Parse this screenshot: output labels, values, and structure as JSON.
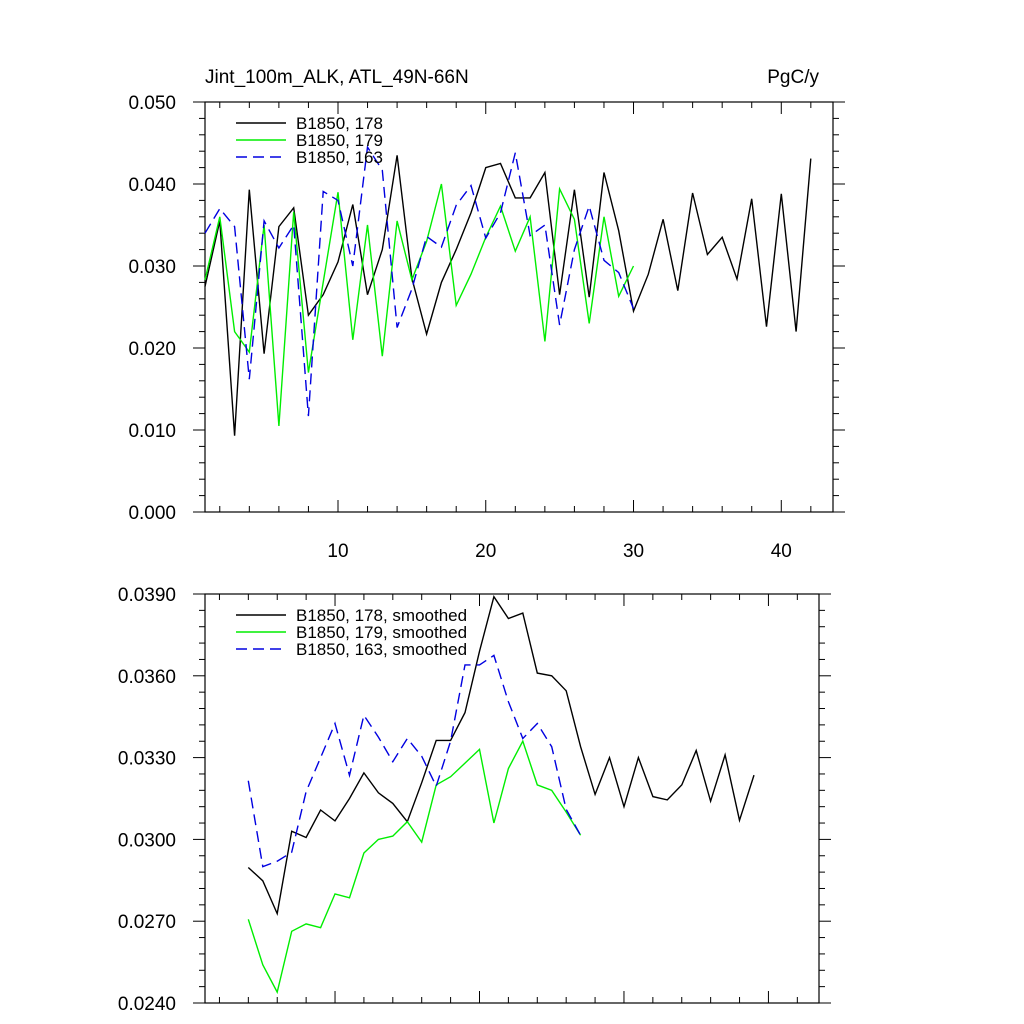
{
  "chart_data": [
    {
      "type": "line",
      "title": "Jint_100m_ALK, ATL_49N-66N",
      "units": "PgC/y",
      "xlim": [
        1,
        43.5
      ],
      "ylim": [
        0,
        0.05
      ],
      "xticks": [
        10,
        20,
        30,
        40
      ],
      "yticks": [
        0,
        0.01,
        0.02,
        0.03,
        0.04,
        0.05
      ],
      "ytick_labels": [
        "0.000",
        "0.010",
        "0.020",
        "0.030",
        "0.040",
        "0.050"
      ],
      "legend_position": "top-left",
      "series": [
        {
          "name": "B1850, 178",
          "color": "#000000",
          "dash": "solid",
          "x": [
            1,
            2,
            3,
            4,
            5,
            6,
            7,
            8,
            9,
            10,
            11,
            12,
            13,
            14,
            15,
            16,
            17,
            18,
            19,
            20,
            21,
            22,
            23,
            24,
            25,
            26,
            27,
            28,
            29,
            30,
            31,
            32,
            33,
            34,
            35,
            36,
            37,
            38,
            39,
            40,
            41,
            42
          ],
          "y": [
            0.0275,
            0.0355,
            0.0093,
            0.0393,
            0.0193,
            0.0348,
            0.0371,
            0.024,
            0.0265,
            0.0305,
            0.0375,
            0.0265,
            0.032,
            0.0435,
            0.0285,
            0.0217,
            0.028,
            0.032,
            0.0365,
            0.042,
            0.0425,
            0.0383,
            0.0383,
            0.0414,
            0.0265,
            0.0393,
            0.0262,
            0.0414,
            0.0343,
            0.0245,
            0.029,
            0.0357,
            0.027,
            0.0389,
            0.0314,
            0.0335,
            0.0284,
            0.0382,
            0.0226,
            0.0388,
            0.022,
            0.0431
          ]
        },
        {
          "name": "B1850, 179",
          "color": "#00ee00",
          "dash": "solid",
          "x": [
            1,
            2,
            3,
            4,
            5,
            6,
            7,
            8,
            9,
            10,
            11,
            12,
            13,
            14,
            15,
            16,
            17,
            18,
            19,
            20,
            21,
            22,
            23,
            24,
            25,
            26,
            27,
            28,
            29,
            30
          ],
          "y": [
            0.0283,
            0.036,
            0.022,
            0.0195,
            0.035,
            0.0105,
            0.0366,
            0.017,
            0.028,
            0.039,
            0.021,
            0.035,
            0.019,
            0.0355,
            0.0283,
            0.033,
            0.04,
            0.0252,
            0.029,
            0.0335,
            0.0373,
            0.0318,
            0.036,
            0.0208,
            0.0394,
            0.0357,
            0.023,
            0.036,
            0.0263,
            0.03
          ]
        },
        {
          "name": "B1850, 163",
          "color": "#0000e0",
          "dash": "dashed",
          "x": [
            1,
            2,
            3,
            4,
            5,
            6,
            7,
            8,
            9,
            10,
            11,
            12,
            13,
            14,
            15,
            16,
            17,
            18,
            19,
            20,
            21,
            22,
            23,
            24,
            25,
            26,
            27,
            28,
            29,
            30
          ],
          "y": [
            0.034,
            0.037,
            0.0348,
            0.0162,
            0.0355,
            0.0322,
            0.035,
            0.0117,
            0.0391,
            0.038,
            0.03,
            0.0445,
            0.0417,
            0.0225,
            0.0272,
            0.0336,
            0.0323,
            0.0374,
            0.0398,
            0.0334,
            0.0365,
            0.0438,
            0.0337,
            0.035,
            0.0228,
            0.032,
            0.0373,
            0.0307,
            0.0292,
            0.0248
          ]
        }
      ]
    },
    {
      "type": "line",
      "xlim": [
        1,
        43.5
      ],
      "ylim": [
        0.024,
        0.039
      ],
      "xticks": [
        10,
        20,
        30,
        40
      ],
      "yticks": [
        0.024,
        0.027,
        0.03,
        0.033,
        0.036,
        0.039
      ],
      "ytick_labels": [
        "0.0240",
        "0.0270",
        "0.0300",
        "0.0330",
        "0.0360",
        "0.0390"
      ],
      "legend_position": "top-left",
      "series": [
        {
          "name": "B1850, 178, smoothed",
          "color": "#000000",
          "dash": "solid",
          "x": [
            4,
            5,
            6,
            7,
            8,
            9,
            10,
            11,
            12,
            13,
            14,
            15,
            16,
            17,
            18,
            19,
            20,
            21,
            22,
            23,
            24,
            25,
            26,
            27,
            28,
            29,
            30,
            31,
            32,
            33,
            34,
            35,
            36,
            37,
            38,
            39
          ],
          "y": [
            0.02897,
            0.02848,
            0.02728,
            0.0303,
            0.03007,
            0.03108,
            0.03068,
            0.0315,
            0.03244,
            0.03171,
            0.03132,
            0.03065,
            0.03208,
            0.03363,
            0.03363,
            0.03465,
            0.0369,
            0.0389,
            0.0381,
            0.0383,
            0.0361,
            0.036,
            0.03545,
            0.0334,
            0.03165,
            0.033,
            0.0312,
            0.033,
            0.03157,
            0.03145,
            0.032,
            0.03326,
            0.0314,
            0.0331,
            0.0307,
            0.03236
          ]
        },
        {
          "name": "B1850, 179, smoothed",
          "color": "#00ee00",
          "dash": "solid",
          "x": [
            4,
            5,
            6,
            7,
            8,
            9,
            10,
            11,
            12,
            13,
            14,
            15,
            16,
            17,
            18,
            19,
            20,
            21,
            22,
            23,
            24,
            25,
            26,
            27
          ],
          "y": [
            0.02707,
            0.0254,
            0.0244,
            0.02663,
            0.0269,
            0.02676,
            0.028,
            0.02786,
            0.0295,
            0.03,
            0.03012,
            0.03065,
            0.0299,
            0.032,
            0.0323,
            0.0328,
            0.0333,
            0.0306,
            0.0326,
            0.0336,
            0.032,
            0.0318,
            0.031,
            0.03015
          ]
        },
        {
          "name": "B1850, 163, smoothed",
          "color": "#0000e0",
          "dash": "dashed",
          "x": [
            4,
            5,
            6,
            7,
            8,
            9,
            10,
            11,
            12,
            13,
            14,
            15,
            16,
            17,
            18,
            19,
            20,
            21,
            22,
            23,
            24,
            25,
            26,
            27
          ],
          "y": [
            0.03215,
            0.029,
            0.0292,
            0.02953,
            0.03175,
            0.033,
            0.03425,
            0.03235,
            0.03455,
            0.03375,
            0.03285,
            0.0337,
            0.03305,
            0.03195,
            0.0336,
            0.0364,
            0.0364,
            0.03675,
            0.03505,
            0.0337,
            0.03425,
            0.0334,
            0.0311,
            0.03015
          ]
        }
      ]
    }
  ]
}
